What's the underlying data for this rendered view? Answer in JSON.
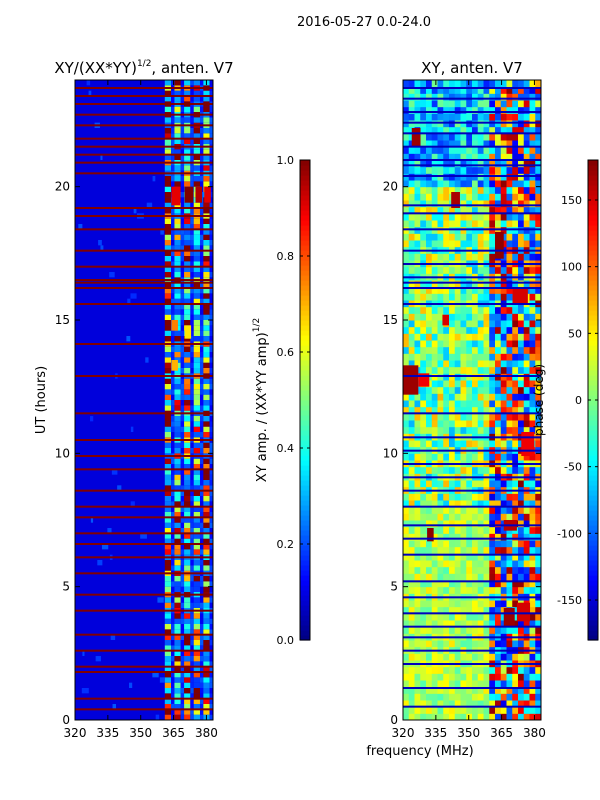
{
  "suptitle": "2016-05-27 0.0-24.0",
  "colors": {
    "axis": "#000000",
    "background": "#ffffff"
  },
  "chart_data": [
    {
      "type": "heatmap",
      "id": "amp",
      "title": "XY/(XX*YY)",
      "title_exponent": "1/2",
      "title_suffix": ", anten. V7",
      "xlabel": "",
      "ylabel": "UT (hours)",
      "xlim": [
        320,
        383
      ],
      "ylim": [
        0,
        24
      ],
      "xticks": [
        320,
        335,
        350,
        365,
        380
      ],
      "yticks": [
        0,
        5,
        10,
        15,
        20
      ],
      "colormap": "jet",
      "colorbar": {
        "label": "XY amp. / (XX*YY amp)",
        "label_exponent": "1/2",
        "range": [
          0.0,
          1.0
        ],
        "ticks": [
          "0.0",
          "0.2",
          "0.4",
          "0.6",
          "0.8",
          "1.0"
        ],
        "tick_values": [
          0.0,
          0.2,
          0.4,
          0.6,
          0.8,
          1.0
        ]
      },
      "flagged_hours": [
        0.4,
        0.8,
        1.8,
        2.0,
        2.6,
        3.2,
        4.1,
        4.7,
        5.5,
        6.1,
        6.6,
        7.0,
        7.6,
        8.0,
        8.6,
        9.4,
        9.9,
        10.5,
        11.5,
        12.9,
        14.1,
        15.6,
        16.2,
        16.4,
        16.5,
        17.0,
        17.6,
        18.4,
        18.9,
        19.2,
        20.5,
        20.9,
        21.2,
        21.5,
        21.8,
        22.3,
        22.7,
        23.1,
        23.4,
        23.7
      ],
      "active_band_mhz": [
        361,
        383
      ],
      "band_peaks": [
        0.85,
        0.75,
        0.8,
        0.7,
        0.9
      ],
      "bright_cells": [
        {
          "f0": 364,
          "f1": 368,
          "t0": 19.3,
          "t1": 20.0,
          "v": 0.9
        },
        {
          "f0": 370,
          "f1": 374,
          "t0": 19.4,
          "t1": 20.0,
          "v": 1.0
        },
        {
          "f0": 375,
          "f1": 378,
          "t0": 19.4,
          "t1": 20.0,
          "v": 0.95
        },
        {
          "f0": 379,
          "f1": 382,
          "t0": 19.4,
          "t1": 20.0,
          "v": 0.9
        },
        {
          "f0": 364,
          "f1": 367,
          "t0": 14.6,
          "t1": 15.0,
          "v": 0.75
        },
        {
          "f0": 370,
          "f1": 373,
          "t0": 14.3,
          "t1": 14.8,
          "v": 0.65
        },
        {
          "f0": 364,
          "f1": 367,
          "t0": 13.1,
          "t1": 13.5,
          "v": 0.7
        }
      ]
    },
    {
      "type": "heatmap",
      "id": "phase",
      "title": "XY, anten. V7",
      "xlabel": "frequency (MHz)",
      "ylabel": "",
      "xlim": [
        320,
        383
      ],
      "ylim": [
        0,
        24
      ],
      "xticks": [
        320,
        335,
        350,
        365,
        380
      ],
      "yticks": [
        0,
        5,
        10,
        15,
        20
      ],
      "colormap": "jet",
      "colorbar": {
        "label": "phase (deg)",
        "range": [
          -180,
          180
        ],
        "ticks": [
          "-150",
          "-100",
          "-50",
          "0",
          "50",
          "100",
          "150"
        ],
        "tick_values": [
          -150,
          -100,
          -50,
          0,
          50,
          100,
          150
        ]
      },
      "flagged_hours": [
        0.5,
        1.2,
        2.1,
        2.6,
        3.1,
        3.5,
        4.0,
        4.6,
        5.2,
        6.2,
        6.8,
        7.3,
        8.0,
        8.6,
        9.1,
        9.6,
        10.1,
        10.6,
        11.5,
        12.9,
        15.6,
        16.2,
        16.4,
        16.6,
        17.1,
        17.6,
        18.4,
        19.0,
        19.3,
        20.4,
        20.8,
        21.0,
        21.5,
        22.0,
        22.4,
        22.8,
        23.3,
        23.7
      ],
      "active_band_mhz": [
        358,
        383
      ],
      "red_patches": [
        {
          "f0": 320,
          "f1": 327,
          "t0": 12.2,
          "t1": 13.3,
          "v": 170
        },
        {
          "f0": 327,
          "f1": 332,
          "t0": 12.5,
          "t1": 13.0,
          "v": 140
        },
        {
          "f0": 342,
          "f1": 346,
          "t0": 19.2,
          "t1": 19.8,
          "v": 165
        },
        {
          "f0": 331,
          "f1": 334,
          "t0": 6.7,
          "t1": 7.2,
          "v": 175
        },
        {
          "f0": 338,
          "f1": 341,
          "t0": 14.8,
          "t1": 15.2,
          "v": 150
        },
        {
          "f0": 362,
          "f1": 366,
          "t0": 17.3,
          "t1": 18.3,
          "v": 175
        },
        {
          "f0": 366,
          "f1": 371,
          "t0": 3.5,
          "t1": 4.2,
          "v": 170
        },
        {
          "f0": 372,
          "f1": 378,
          "t0": 3.7,
          "t1": 4.4,
          "v": 150
        },
        {
          "f0": 374,
          "f1": 380,
          "t0": 9.9,
          "t1": 10.8,
          "v": 140
        },
        {
          "f0": 366,
          "f1": 372,
          "t0": 7.1,
          "t1": 7.5,
          "v": 160
        },
        {
          "f0": 370,
          "f1": 377,
          "t0": 15.6,
          "t1": 16.2,
          "v": 150
        },
        {
          "f0": 324,
          "f1": 328,
          "t0": 21.5,
          "t1": 22.2,
          "v": 170
        }
      ]
    }
  ]
}
